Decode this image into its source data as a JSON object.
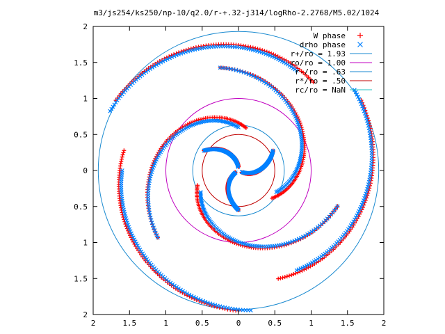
{
  "chart_data": {
    "type": "scatter",
    "title": "m3/js254/ks250/np-10/q2.0/r-+.32-j314/logRho-2.2768/M5.02/1024",
    "xlim": [
      -2,
      2
    ],
    "ylim": [
      -2,
      2
    ],
    "x_ticks": [
      "2",
      "1.5",
      "1",
      "0.5",
      "0",
      "0.5",
      "1",
      "1.5",
      "2"
    ],
    "x_tick_values": [
      -2,
      -1.5,
      -1,
      -0.5,
      0,
      0.5,
      1,
      1.5,
      2
    ],
    "y_ticks": [
      "2",
      "1.5",
      "1",
      "0.5",
      "0",
      "0.5",
      "1",
      "1.5",
      "2"
    ],
    "y_tick_values": [
      2,
      1.5,
      1,
      0.5,
      0,
      -0.5,
      -1,
      -1.5,
      -2
    ],
    "grid": false,
    "legend_position": "top-right",
    "legend": [
      {
        "label": "W phase",
        "marker": "+",
        "color": "#ff0000"
      },
      {
        "label": "drho phase",
        "marker": "x",
        "color": "#0080ff"
      },
      {
        "label": "r+/ro = 1.93",
        "marker": "line",
        "color": "#1a8ad0",
        "radius": 1.93
      },
      {
        "label": "ro/ro = 1.00",
        "marker": "line",
        "color": "#c000c0",
        "radius": 1.0
      },
      {
        "label": "r-/ro = .63",
        "marker": "line",
        "color": "#1a8ad0",
        "radius": 0.63
      },
      {
        "label": "r*/ro = .50",
        "marker": "line",
        "color": "#c00000",
        "radius": 0.5
      },
      {
        "label": "rc/ro = NaN",
        "marker": "line",
        "color": "#20c0c0",
        "radius": null
      }
    ],
    "series": [
      {
        "name": "W phase",
        "color": "#ff0000",
        "arms": [
          {
            "r_range": [
              0.05,
              0.55
            ],
            "theta0_deg": 90,
            "wind_deg": 60
          },
          {
            "r_range": [
              0.05,
              0.55
            ],
            "theta0_deg": 210,
            "wind_deg": 60
          },
          {
            "r_range": [
              0.05,
              0.55
            ],
            "theta0_deg": 330,
            "wind_deg": 60
          },
          {
            "r_range": [
              0.6,
              1.45
            ],
            "theta0_deg": 80,
            "wind_deg": 140
          },
          {
            "r_range": [
              0.6,
              1.45
            ],
            "theta0_deg": 200,
            "wind_deg": 140
          },
          {
            "r_range": [
              0.6,
              1.45
            ],
            "theta0_deg": 320,
            "wind_deg": 140
          },
          {
            "r_range": [
              1.6,
              1.95
            ],
            "theta0_deg": 50,
            "wind_deg": 100
          },
          {
            "r_range": [
              1.6,
              1.95
            ],
            "theta0_deg": 170,
            "wind_deg": 100
          },
          {
            "r_range": [
              1.6,
              1.95
            ],
            "theta0_deg": 290,
            "wind_deg": 100
          }
        ]
      },
      {
        "name": "drho phase",
        "color": "#0080ff",
        "arms": [
          {
            "r_range": [
              0.05,
              0.55
            ],
            "theta0_deg": 95,
            "wind_deg": 55
          },
          {
            "r_range": [
              0.05,
              0.55
            ],
            "theta0_deg": 215,
            "wind_deg": 55
          },
          {
            "r_range": [
              0.05,
              0.55
            ],
            "theta0_deg": 335,
            "wind_deg": 55
          },
          {
            "r_range": [
              0.6,
              1.45
            ],
            "theta0_deg": 90,
            "wind_deg": 130
          },
          {
            "r_range": [
              0.6,
              1.45
            ],
            "theta0_deg": 210,
            "wind_deg": 130
          },
          {
            "r_range": [
              0.6,
              1.45
            ],
            "theta0_deg": 330,
            "wind_deg": 130
          },
          {
            "r_range": [
              1.6,
              1.95
            ],
            "theta0_deg": 60,
            "wind_deg": 95
          },
          {
            "r_range": [
              1.6,
              1.95
            ],
            "theta0_deg": 180,
            "wind_deg": 95
          },
          {
            "r_range": [
              1.6,
              1.95
            ],
            "theta0_deg": 300,
            "wind_deg": 95
          }
        ]
      }
    ]
  }
}
